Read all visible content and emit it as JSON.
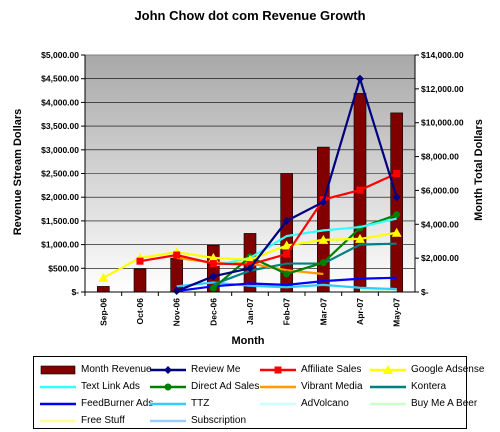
{
  "chart_data": {
    "type": "bar",
    "title": "John Chow dot com Revenue Growth",
    "xlabel": "Month",
    "ylabel": "Revenue Stream Dollars",
    "y2label": "Month Total Dollars",
    "categories": [
      "Sep-06",
      "Oct-06",
      "Nov-06",
      "Dec-06",
      "Jan-07",
      "Feb-07",
      "Mar-07",
      "Apr-07",
      "May-07"
    ],
    "ylim": [
      0,
      5000
    ],
    "y2lim": [
      0,
      14000
    ],
    "yticks": [
      "$-",
      "$500.00",
      "$1,000.00",
      "$1,500.00",
      "$2,000.00",
      "$2,500.00",
      "$3,000.00",
      "$3,500.00",
      "$4,000.00",
      "$4,500.00",
      "$5,000.00"
    ],
    "y2ticks": [
      "$-",
      "$2,000.00",
      "$4,000.00",
      "$6,000.00",
      "$8,000.00",
      "$10,000.00",
      "$12,000.00",
      "$14,000.00"
    ],
    "grid": true,
    "legend_position": "bottom",
    "series": [
      {
        "name": "Month Revenue",
        "kind": "bar",
        "axis": "right",
        "color": "#800000",
        "values": [
          330,
          1360,
          2000,
          2760,
          3460,
          7000,
          8560,
          11730,
          10580
        ]
      },
      {
        "name": "Review Me",
        "kind": "line",
        "axis": "left",
        "color": "#000080",
        "marker": "diamond",
        "values": [
          null,
          null,
          20,
          330,
          500,
          1500,
          1900,
          4500,
          2000
        ]
      },
      {
        "name": "Affiliate Sales",
        "kind": "line",
        "axis": "left",
        "color": "#ff0000",
        "marker": "square",
        "values": [
          null,
          650,
          780,
          600,
          580,
          800,
          1950,
          2150,
          2500
        ]
      },
      {
        "name": "Google Adsense",
        "kind": "line",
        "axis": "left",
        "color": "#ffff00",
        "marker": "triangle",
        "values": [
          300,
          720,
          840,
          720,
          680,
          980,
          1100,
          1120,
          1250
        ]
      },
      {
        "name": "Text Link Ads",
        "kind": "line",
        "axis": "left",
        "color": "#33ffff",
        "marker": "none",
        "values": [
          null,
          null,
          null,
          550,
          720,
          1180,
          1300,
          1370,
          1550
        ]
      },
      {
        "name": "Direct Ad Sales",
        "kind": "line",
        "axis": "left",
        "color": "#008000",
        "marker": "circle",
        "values": [
          null,
          null,
          null,
          80,
          740,
          380,
          620,
          1350,
          1630
        ]
      },
      {
        "name": "Vibrant Media",
        "kind": "line",
        "axis": "left",
        "color": "#ff9900",
        "marker": "none",
        "values": [
          null,
          null,
          720,
          620,
          600,
          460,
          380,
          null,
          null
        ]
      },
      {
        "name": "Kontera",
        "kind": "line",
        "axis": "left",
        "color": "#008080",
        "marker": "none",
        "values": [
          null,
          null,
          null,
          160,
          450,
          600,
          600,
          1000,
          1020
        ]
      },
      {
        "name": "FeedBurner Ads",
        "kind": "line",
        "axis": "left",
        "color": "#0000ff",
        "marker": "none",
        "values": [
          null,
          null,
          20,
          120,
          180,
          150,
          230,
          280,
          300
        ]
      },
      {
        "name": "TTZ",
        "kind": "line",
        "axis": "left",
        "color": "#33ccff",
        "marker": "none",
        "values": [
          null,
          null,
          120,
          200,
          130,
          100,
          150,
          90,
          60
        ]
      },
      {
        "name": "AdVolcano",
        "kind": "line",
        "axis": "left",
        "color": "#ccffff",
        "marker": "none",
        "values": [
          null,
          null,
          null,
          null,
          null,
          null,
          null,
          80,
          60
        ]
      },
      {
        "name": "Buy Me A Beer",
        "kind": "line",
        "axis": "left",
        "color": "#ccffcc",
        "marker": "none",
        "values": [
          null,
          null,
          null,
          null,
          null,
          null,
          null,
          40,
          30
        ]
      },
      {
        "name": "Free Stuff",
        "kind": "line",
        "axis": "left",
        "color": "#ffff99",
        "marker": "none",
        "values": [
          null,
          null,
          null,
          null,
          null,
          null,
          null,
          20,
          20
        ]
      },
      {
        "name": "Subscription",
        "kind": "line",
        "axis": "left",
        "color": "#99ccff",
        "marker": "none",
        "values": [
          null,
          null,
          null,
          null,
          null,
          null,
          null,
          null,
          200
        ]
      }
    ]
  }
}
